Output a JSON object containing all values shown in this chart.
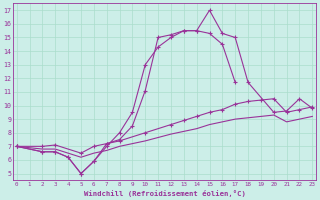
{
  "xlabel": "Windchill (Refroidissement éolien,°C)",
  "bg_color": "#cceee8",
  "line_color": "#993399",
  "grid_color": "#aaddcc",
  "xticks": [
    0,
    1,
    2,
    3,
    4,
    5,
    6,
    7,
    8,
    9,
    10,
    11,
    12,
    13,
    14,
    15,
    16,
    17,
    18,
    19,
    20,
    21,
    22,
    23
  ],
  "yticks": [
    5,
    6,
    7,
    8,
    9,
    10,
    11,
    12,
    13,
    14,
    15,
    16,
    17
  ],
  "xlim": [
    -0.3,
    23.3
  ],
  "ylim": [
    4.5,
    17.5
  ],
  "line1_x": [
    0,
    2,
    3,
    4,
    5,
    6,
    7,
    8,
    9,
    10,
    11,
    12,
    13,
    14,
    15,
    16,
    17,
    18,
    20,
    21,
    22,
    23
  ],
  "line1_y": [
    7.0,
    6.6,
    6.6,
    6.2,
    5.0,
    5.9,
    7.2,
    7.5,
    8.5,
    11.1,
    15.0,
    15.2,
    15.5,
    15.5,
    17.0,
    15.3,
    15.0,
    11.7,
    9.5,
    9.6,
    10.5,
    9.8
  ],
  "line2_x": [
    0,
    2,
    3,
    4,
    5,
    6,
    7,
    8,
    9,
    10,
    11,
    12,
    13,
    14,
    15,
    16,
    17
  ],
  "line2_y": [
    7.0,
    6.6,
    6.6,
    6.2,
    5.0,
    5.9,
    7.0,
    8.0,
    9.5,
    13.0,
    14.3,
    15.0,
    15.5,
    15.5,
    15.3,
    14.5,
    11.7
  ],
  "line3_x": [
    0,
    2,
    3,
    5,
    6,
    7,
    8,
    10,
    12,
    13,
    14,
    15,
    16,
    17,
    18,
    19,
    20,
    21,
    22,
    23
  ],
  "line3_y": [
    7.0,
    7.0,
    7.1,
    6.5,
    7.0,
    7.2,
    7.4,
    8.0,
    8.6,
    8.9,
    9.2,
    9.5,
    9.7,
    10.1,
    10.3,
    10.4,
    10.5,
    9.5,
    9.7,
    9.9
  ],
  "line4_x": [
    0,
    2,
    3,
    5,
    6,
    7,
    8,
    10,
    12,
    13,
    14,
    15,
    16,
    17,
    18,
    19,
    20,
    21,
    22,
    23
  ],
  "line4_y": [
    7.0,
    6.8,
    6.8,
    6.2,
    6.5,
    6.7,
    7.0,
    7.4,
    7.9,
    8.1,
    8.3,
    8.6,
    8.8,
    9.0,
    9.1,
    9.2,
    9.3,
    8.8,
    9.0,
    9.2
  ]
}
